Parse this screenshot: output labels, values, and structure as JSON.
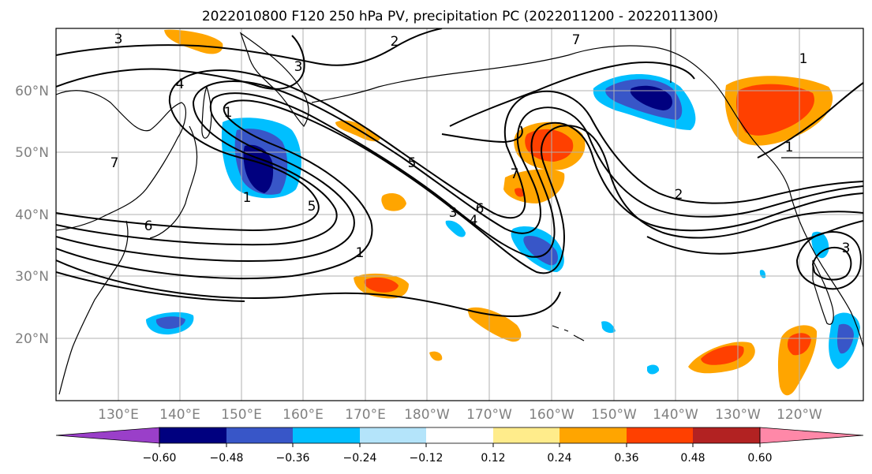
{
  "title": "2022010800 F120 250 hPa PV, precipitation PC (2022011200 - 2022011300)",
  "lat_labels": [
    "60°N",
    "50°N",
    "40°N",
    "30°N",
    "20°N"
  ],
  "lon_labels": [
    "130°E",
    "140°E",
    "150°E",
    "160°E",
    "170°E",
    "180°W",
    "170°W",
    "160°W",
    "150°W",
    "140°W",
    "130°W",
    "120°W"
  ],
  "colorbar": {
    "ticks": [
      "−0.60",
      "−0.48",
      "−0.36",
      "−0.24",
      "−0.12",
      "0.12",
      "0.24",
      "0.36",
      "0.48",
      "0.60"
    ],
    "colors": [
      "#9a3fc9",
      "#00007f",
      "#3856c8",
      "#00bfff",
      "#b4e4fa",
      "#ffffff",
      "#ffec8b",
      "#ffa500",
      "#ff4000",
      "#b22222",
      "#ff88a8"
    ]
  },
  "contour_labels": [
    "3",
    "2",
    "7",
    "1",
    "3",
    "4",
    "7",
    "5",
    "6",
    "7",
    "3",
    "5",
    "6",
    "4",
    "1",
    "2",
    "1",
    "3",
    "1",
    "1"
  ]
}
